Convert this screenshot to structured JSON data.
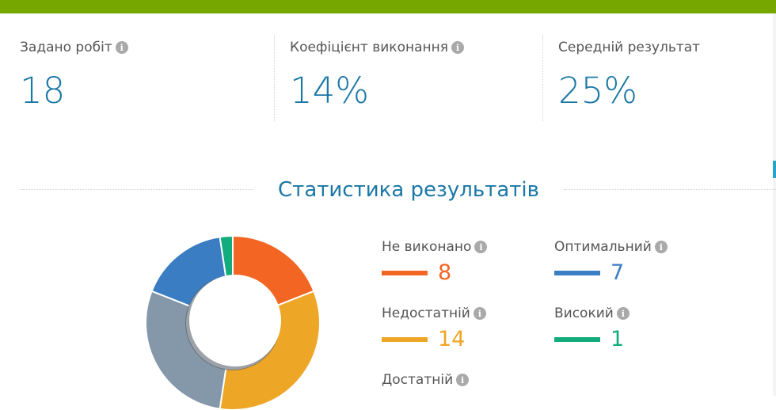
{
  "stats": [
    {
      "label": "Задано робіт",
      "value": "18",
      "info": true
    },
    {
      "label": "Коефіцієнт виконання",
      "value": "14%",
      "info": true
    },
    {
      "label": "Середній результат",
      "value": "25%",
      "info": false
    }
  ],
  "section_title": "Статистика результатів",
  "info_glyph": "i",
  "chart_data": {
    "type": "pie",
    "title": "",
    "categories": [
      "Не виконано",
      "Недостатній",
      "Достатній",
      "Оптимальний",
      "Високий"
    ],
    "values": [
      8,
      14,
      12,
      7,
      1
    ],
    "colors": [
      "#f26522",
      "#eea627",
      "#8498aa",
      "#3a7dc3",
      "#13ad7d"
    ]
  },
  "legend": [
    {
      "label": "Не виконано",
      "count": "8",
      "color": "#f26522"
    },
    {
      "label": "Оптимальний",
      "count": "7",
      "color": "#3a7dc3"
    },
    {
      "label": "Недостатній",
      "count": "14",
      "color": "#eea627"
    },
    {
      "label": "Високий",
      "count": "1",
      "color": "#13ad7d"
    },
    {
      "label": "Достатній",
      "count": "",
      "color": "#8498aa"
    }
  ]
}
